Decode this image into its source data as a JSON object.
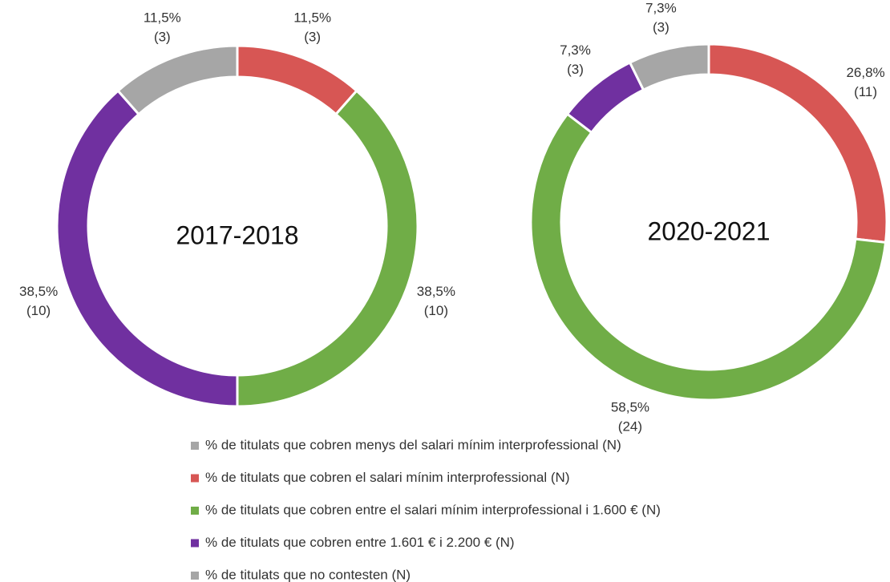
{
  "chart_data": {
    "type": "donut",
    "categories": [
      "% de titulats que cobren menys del salari mínim interprofessional (N)",
      "% de titulats que cobren el salari mínim interprofessional (N)",
      "% de titulats que cobren entre el salari mínim interprofessional i 1.600 € (N)",
      "% de titulats que cobren entre 1.601 € i 2.200 € (N)",
      "% de titulats que no contesten (N)"
    ],
    "colors": [
      "#a6a6a6",
      "#d75654",
      "#70ad47",
      "#7030a0",
      "#a6a6a6"
    ],
    "charts": [
      {
        "title": "2017-2018",
        "values": [
          null,
          11.5,
          38.5,
          38.5,
          11.5
        ],
        "value_labels": [
          null,
          "11,5%",
          "38,5%",
          "38,5%",
          "11,5%"
        ],
        "counts": [
          null,
          3,
          10,
          10,
          3
        ],
        "count_labels": [
          null,
          "(3)",
          "(10)",
          "(10)",
          "(3)"
        ]
      },
      {
        "title": "2020-2021",
        "values": [
          null,
          26.8,
          58.5,
          7.3,
          7.3
        ],
        "value_labels": [
          null,
          "26,8%",
          "58,5%",
          "7,3%",
          "7,3%"
        ],
        "counts": [
          null,
          11,
          24,
          3,
          3
        ],
        "count_labels": [
          null,
          "(11)",
          "(24)",
          "(3)",
          "(3)"
        ]
      }
    ]
  }
}
